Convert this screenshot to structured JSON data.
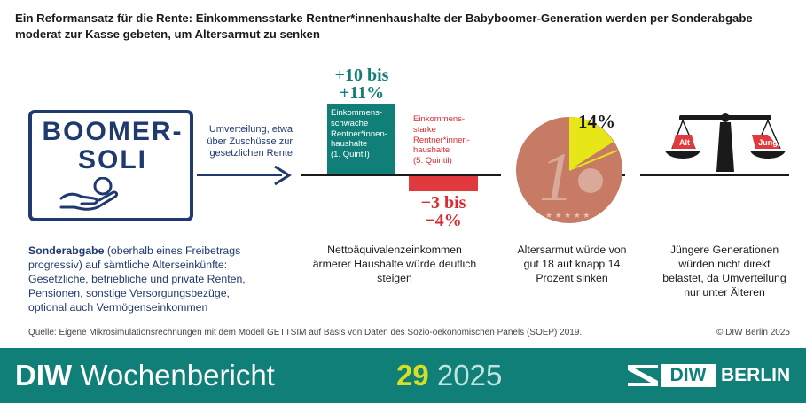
{
  "header": {
    "title": "Ein Reformansatz für die Rente: Einkommensstarke Rentner*innenhaushalte der Babyboomer-Generation werden per Sonderabgabe moderat zur Kasse gebeten, um Altersarmut zu senken"
  },
  "logo": {
    "line1": "BOOMER-",
    "line2": "SOLI"
  },
  "redistribution": "Umverteilung, etwa über Zuschüsse zur gesetzlichen Rente",
  "bars": {
    "low": {
      "value_label": "+10 bis +11%",
      "label": "Einkommens-schwache Rentner*innen-haushalte",
      "quintile": "(1. Quintil)",
      "change_percent": 10.5,
      "color": "#0f7f78"
    },
    "high": {
      "value_label": "−3 bis −4%",
      "label": "Einkommens-starke Rentner*innen-haushalte",
      "quintile": "(5. Quintil)",
      "change_percent": -3.5,
      "color": "#e03a3e"
    }
  },
  "coin": {
    "percent_label": "14%",
    "digit": "1",
    "poverty_share": 14
  },
  "scale": {
    "left": "Alt",
    "right": "Jung"
  },
  "captions": {
    "income": "Nettoäquivalenzeinkommen ärmerer Haushalte würde deutlich steigen",
    "poverty": "Altersarmut würde von gut 18 auf knapp 14 Prozent sinken",
    "generations": "Jüngere Generationen würden nicht direkt belastet, da Umverteilung nur unter Älteren"
  },
  "description": {
    "bold": "Sonderabgabe",
    "rest": " (oberhalb eines Freibetrags progressiv) auf sämtliche Alterseinkünfte: Gesetzliche, betriebliche und private Renten, Pensionen, sonstige Versorgungsbezüge, optional auch Vermögenseinkommen"
  },
  "source": "Quelle: Eigene Mikrosimulationsrechnungen mit dem Modell GETTSIM auf Basis von Daten des Sozio-oekonomischen Panels (SOEP) 2019.",
  "copyright": "© DIW Berlin 2025",
  "footer": {
    "brand_bold": "DIW",
    "brand_rest": " Wochenbericht",
    "issue_number": "29",
    "issue_year": " 2025",
    "logo_left": "DIW",
    "logo_right": "BERLIN"
  },
  "colors": {
    "navy": "#1f3a6e",
    "teal": "#0f7f78",
    "red": "#e03a3e",
    "yellow": "#e6e619",
    "copper": "#c77a64"
  }
}
